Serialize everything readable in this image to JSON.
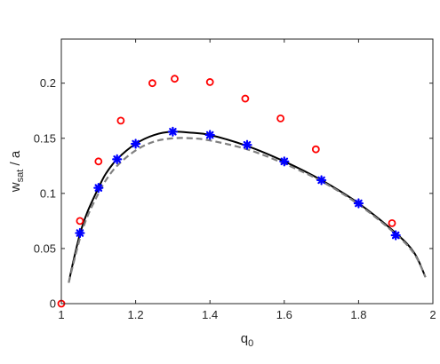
{
  "chart_data": {
    "type": "scatter",
    "xlabel": "q",
    "xlabel_sub": "0",
    "ylabel": "w",
    "ylabel_sub": "sat",
    "ylabel_suffix": " / a",
    "xlim": [
      1,
      2
    ],
    "ylim": [
      0,
      0.24
    ],
    "xticks": [
      1,
      1.2,
      1.4,
      1.6,
      1.8,
      2
    ],
    "xtick_labels": [
      "1",
      "1.2",
      "1.4",
      "1.6",
      "1.8",
      "2"
    ],
    "yticks": [
      0,
      0.05,
      0.1,
      0.15,
      0.2
    ],
    "ytick_labels": [
      "0",
      "0.05",
      "0.1",
      "0.15",
      "0.2"
    ],
    "grid": false,
    "box": true,
    "series": [
      {
        "style": "solid-line",
        "color": "#000000",
        "x": [
          1.02,
          1.03,
          1.05,
          1.07,
          1.1,
          1.12,
          1.15,
          1.2,
          1.25,
          1.3,
          1.35,
          1.4,
          1.5,
          1.6,
          1.7,
          1.8,
          1.9,
          1.95,
          1.98
        ],
        "y": [
          0.019,
          0.035,
          0.063,
          0.083,
          0.105,
          0.118,
          0.131,
          0.145,
          0.153,
          0.156,
          0.155,
          0.153,
          0.143,
          0.129,
          0.112,
          0.091,
          0.064,
          0.046,
          0.024
        ]
      },
      {
        "style": "dashed-line",
        "color": "#808080",
        "x": [
          1.02,
          1.03,
          1.05,
          1.07,
          1.1,
          1.12,
          1.15,
          1.2,
          1.25,
          1.3,
          1.35,
          1.4,
          1.5,
          1.6,
          1.7,
          1.8,
          1.9,
          1.95,
          1.98
        ],
        "y": [
          0.019,
          0.033,
          0.059,
          0.079,
          0.1,
          0.112,
          0.125,
          0.139,
          0.147,
          0.15,
          0.15,
          0.148,
          0.14,
          0.127,
          0.111,
          0.09,
          0.063,
          0.045,
          0.024
        ]
      },
      {
        "style": "star-markers",
        "color": "#0000ff",
        "x": [
          1.05,
          1.1,
          1.15,
          1.2,
          1.3,
          1.4,
          1.5,
          1.6,
          1.7,
          1.8,
          1.9
        ],
        "y": [
          0.064,
          0.105,
          0.131,
          0.145,
          0.156,
          0.153,
          0.144,
          0.129,
          0.112,
          0.091,
          0.062
        ]
      },
      {
        "style": "circle-markers",
        "color": "#ff0000",
        "x": [
          1.0,
          1.05,
          1.1,
          1.16,
          1.245,
          1.305,
          1.4,
          1.495,
          1.59,
          1.685,
          1.89
        ],
        "y": [
          0.0,
          0.075,
          0.129,
          0.166,
          0.2,
          0.204,
          0.201,
          0.186,
          0.168,
          0.14,
          0.073
        ]
      }
    ]
  }
}
